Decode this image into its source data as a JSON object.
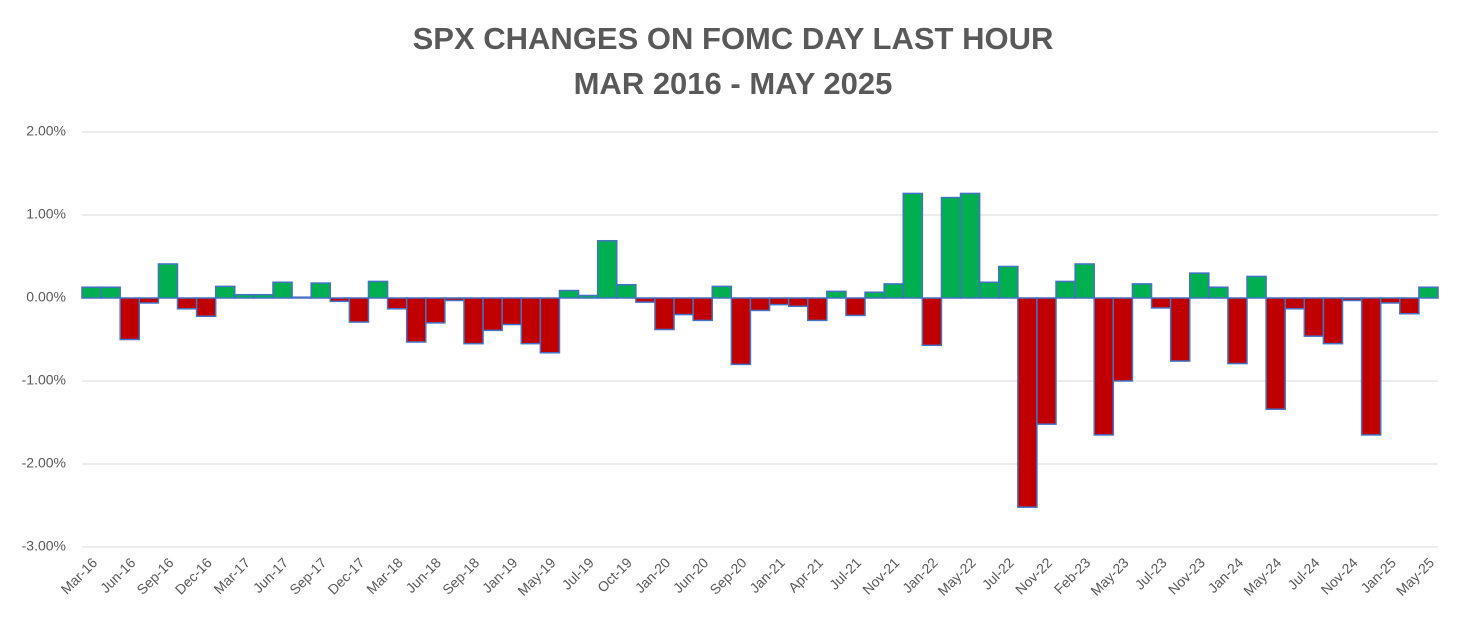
{
  "chart_data": {
    "type": "bar",
    "title": "SPX CHANGES ON FOMC DAY LAST HOUR",
    "subtitle": "MAR 2016 - MAY 2025",
    "categories": [
      "Mar-16",
      null,
      "Jun-16",
      null,
      "Sep-16",
      null,
      "Dec-16",
      null,
      "Mar-17",
      null,
      "Jun-17",
      null,
      "Sep-17",
      null,
      "Dec-17",
      null,
      "Mar-18",
      null,
      "Jun-18",
      null,
      "Sep-18",
      null,
      "Jan-19",
      null,
      "May-19",
      null,
      "Jul-19",
      null,
      "Oct-19",
      null,
      "Jan-20",
      null,
      "Jun-20",
      null,
      "Sep-20",
      null,
      "Jan-21",
      null,
      "Apr-21",
      null,
      "Jul-21",
      null,
      "Nov-21",
      null,
      "Jan-22",
      null,
      "May-22",
      null,
      "Jul-22",
      null,
      "Nov-22",
      null,
      "Feb-23",
      null,
      "May-23",
      null,
      "Jul-23",
      null,
      "Nov-23",
      null,
      "Jan-24",
      null,
      "May-24",
      null,
      "Jul-24",
      null,
      "Nov-24",
      null,
      "Jan-25",
      null,
      "May-25"
    ],
    "values": [
      0.13,
      0.13,
      -0.5,
      -0.06,
      0.41,
      -0.13,
      -0.22,
      0.14,
      0.04,
      0.04,
      0.19,
      0.01,
      0.18,
      -0.04,
      -0.29,
      0.2,
      -0.13,
      -0.53,
      -0.3,
      -0.03,
      -0.55,
      -0.39,
      -0.32,
      -0.55,
      -0.66,
      0.09,
      0.03,
      0.69,
      0.16,
      -0.05,
      -0.38,
      -0.2,
      -0.27,
      0.14,
      -0.8,
      -0.15,
      -0.08,
      -0.1,
      -0.27,
      0.08,
      -0.21,
      0.07,
      0.17,
      1.26,
      -0.57,
      1.21,
      1.26,
      0.19,
      0.38,
      -2.52,
      -1.52,
      0.2,
      0.41,
      -1.65,
      -1.0,
      0.17,
      -0.12,
      -0.76,
      0.3,
      0.13,
      -0.79,
      0.26,
      -1.34,
      -0.13,
      -0.46,
      -0.55,
      -0.03,
      -1.65,
      -0.06,
      -0.19,
      0.13
    ],
    "positive_color": "#00b050",
    "negative_color": "#c00000",
    "border_color": "#4472c4",
    "ylim": [
      -3,
      2
    ],
    "yticks": [
      {
        "value": -3,
        "label": "-3.00%"
      },
      {
        "value": -2,
        "label": "-2.00%"
      },
      {
        "value": -1,
        "label": "-1.00%"
      },
      {
        "value": 0,
        "label": "0.00%"
      },
      {
        "value": 1,
        "label": "1.00%"
      },
      {
        "value": 2,
        "label": "2.00%"
      }
    ],
    "grid": true
  }
}
